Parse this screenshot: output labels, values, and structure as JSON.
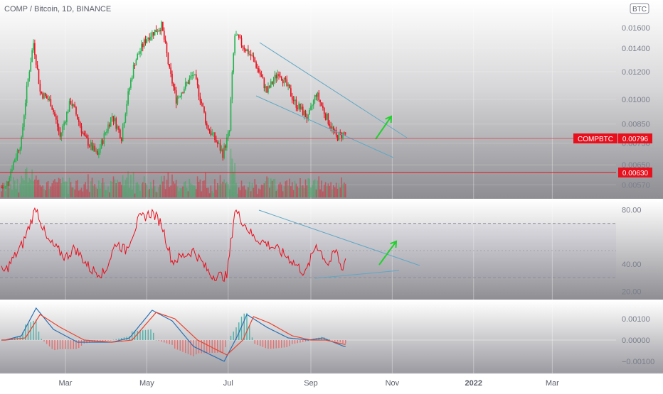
{
  "header": {
    "symbol_line": "COMP / Bitcoin, 1D, BINANCE",
    "currency_badge": "BTC"
  },
  "chart_data": [
    {
      "type": "candlestick",
      "panel": "price",
      "title": "COMP / Bitcoin, 1D, BINANCE",
      "y_scale": "log",
      "ylim": [
        0.0053,
        0.0185
      ],
      "y_ticks": [
        "0.01600",
        "0.01400",
        "0.01200",
        "0.01000",
        "0.00850",
        "0.00750",
        "0.00650",
        "0.00570"
      ],
      "x_ticks": [
        "Mar",
        "May",
        "Jul",
        "Sep",
        "Nov",
        "2022",
        "Mar"
      ],
      "price_tag": {
        "label": "COMPBTC",
        "value": "0.00796",
        "color": "#e8101d"
      },
      "level_tag": {
        "value": "0.00630",
        "color": "#e8101d"
      },
      "key_points": [
        {
          "date": "2021-01-15",
          "close": 0.0056
        },
        {
          "date": "2021-01-27",
          "close": 0.0076
        },
        {
          "date": "2021-02-05",
          "close": 0.0145
        },
        {
          "date": "2021-02-10",
          "close": 0.0105
        },
        {
          "date": "2021-02-18",
          "close": 0.0098
        },
        {
          "date": "2021-02-25",
          "close": 0.0078
        },
        {
          "date": "2021-03-05",
          "close": 0.0099
        },
        {
          "date": "2021-03-15",
          "close": 0.0078
        },
        {
          "date": "2021-03-25",
          "close": 0.0069
        },
        {
          "date": "2021-04-05",
          "close": 0.009
        },
        {
          "date": "2021-04-12",
          "close": 0.0078
        },
        {
          "date": "2021-04-22",
          "close": 0.0128
        },
        {
          "date": "2021-05-01",
          "close": 0.015
        },
        {
          "date": "2021-05-12",
          "close": 0.0162
        },
        {
          "date": "2021-05-18",
          "close": 0.012
        },
        {
          "date": "2021-05-23",
          "close": 0.01
        },
        {
          "date": "2021-06-05",
          "close": 0.0118
        },
        {
          "date": "2021-06-15",
          "close": 0.0084
        },
        {
          "date": "2021-06-27",
          "close": 0.007
        },
        {
          "date": "2021-07-02",
          "close": 0.0081
        },
        {
          "date": "2021-07-06",
          "close": 0.0152
        },
        {
          "date": "2021-07-20",
          "close": 0.013
        },
        {
          "date": "2021-07-30",
          "close": 0.0105
        },
        {
          "date": "2021-08-08",
          "close": 0.012
        },
        {
          "date": "2021-08-20",
          "close": 0.0098
        },
        {
          "date": "2021-08-30",
          "close": 0.0088
        },
        {
          "date": "2021-09-05",
          "close": 0.0104
        },
        {
          "date": "2021-09-12",
          "close": 0.009
        },
        {
          "date": "2021-09-20",
          "close": 0.0078
        },
        {
          "date": "2021-09-26",
          "close": 0.008
        }
      ],
      "annotations": [
        "descending channel",
        "horizontal support",
        "upward arrow"
      ]
    },
    {
      "type": "line",
      "panel": "rsi",
      "y_ticks": [
        "80.00",
        "40.00",
        "20.00"
      ],
      "ylim": [
        15,
        85
      ],
      "bands": [
        70,
        30
      ],
      "key_points": [
        {
          "date": "2021-01-15",
          "value": 35
        },
        {
          "date": "2021-01-28",
          "value": 55
        },
        {
          "date": "2021-02-07",
          "value": 82
        },
        {
          "date": "2021-02-15",
          "value": 58
        },
        {
          "date": "2021-03-01",
          "value": 45
        },
        {
          "date": "2021-03-08",
          "value": 52
        },
        {
          "date": "2021-03-20",
          "value": 36
        },
        {
          "date": "2021-03-30",
          "value": 33
        },
        {
          "date": "2021-04-08",
          "value": 56
        },
        {
          "date": "2021-04-15",
          "value": 50
        },
        {
          "date": "2021-04-25",
          "value": 73
        },
        {
          "date": "2021-05-05",
          "value": 78
        },
        {
          "date": "2021-05-12",
          "value": 70
        },
        {
          "date": "2021-05-20",
          "value": 42
        },
        {
          "date": "2021-06-05",
          "value": 50
        },
        {
          "date": "2021-06-18",
          "value": 32
        },
        {
          "date": "2021-06-30",
          "value": 31
        },
        {
          "date": "2021-07-06",
          "value": 80
        },
        {
          "date": "2021-07-20",
          "value": 60
        },
        {
          "date": "2021-08-05",
          "value": 52
        },
        {
          "date": "2021-08-15",
          "value": 45
        },
        {
          "date": "2021-08-28",
          "value": 33
        },
        {
          "date": "2021-09-05",
          "value": 55
        },
        {
          "date": "2021-09-14",
          "value": 40
        },
        {
          "date": "2021-09-20",
          "value": 50
        },
        {
          "date": "2021-09-24",
          "value": 36
        },
        {
          "date": "2021-09-27",
          "value": 44
        }
      ]
    },
    {
      "type": "line",
      "panel": "macd",
      "y_ticks": [
        "0.00100",
        "0.00000",
        "−0.00100"
      ],
      "ylim": [
        -0.0015,
        0.0017
      ],
      "series": [
        {
          "color": "#2b6fb2",
          "points": [
            {
              "date": "2021-01-15",
              "value": 0.0
            },
            {
              "date": "2021-01-27",
              "value": 0.0002
            },
            {
              "date": "2021-02-07",
              "value": 0.0015
            },
            {
              "date": "2021-02-20",
              "value": 0.0005
            },
            {
              "date": "2021-03-10",
              "value": -0.0001
            },
            {
              "date": "2021-04-05",
              "value": -0.0001
            },
            {
              "date": "2021-04-18",
              "value": 0.0001
            },
            {
              "date": "2021-05-05",
              "value": 0.0014
            },
            {
              "date": "2021-05-20",
              "value": 0.0009
            },
            {
              "date": "2021-06-05",
              "value": -0.0003
            },
            {
              "date": "2021-06-28",
              "value": -0.001
            },
            {
              "date": "2021-07-08",
              "value": 0.0002
            },
            {
              "date": "2021-07-15",
              "value": 0.0012
            },
            {
              "date": "2021-07-30",
              "value": 0.0006
            },
            {
              "date": "2021-08-15",
              "value": 0.0001
            },
            {
              "date": "2021-08-30",
              "value": 0.0
            },
            {
              "date": "2021-09-10",
              "value": 0.0001
            },
            {
              "date": "2021-09-26",
              "value": -0.0003
            }
          ]
        },
        {
          "color": "#e8442e",
          "points": [
            {
              "date": "2021-01-15",
              "value": 0.0
            },
            {
              "date": "2021-01-30",
              "value": 0.0001
            },
            {
              "date": "2021-02-10",
              "value": 0.0012
            },
            {
              "date": "2021-02-25",
              "value": 0.0006
            },
            {
              "date": "2021-03-15",
              "value": 0.0
            },
            {
              "date": "2021-04-05",
              "value": -0.0001
            },
            {
              "date": "2021-04-20",
              "value": 0.0
            },
            {
              "date": "2021-05-08",
              "value": 0.0013
            },
            {
              "date": "2021-05-22",
              "value": 0.001
            },
            {
              "date": "2021-06-08",
              "value": 0.0
            },
            {
              "date": "2021-06-30",
              "value": -0.0007
            },
            {
              "date": "2021-07-12",
              "value": 0.0
            },
            {
              "date": "2021-07-20",
              "value": 0.0011
            },
            {
              "date": "2021-08-01",
              "value": 0.0008
            },
            {
              "date": "2021-08-18",
              "value": 0.0002
            },
            {
              "date": "2021-09-01",
              "value": 0.0
            },
            {
              "date": "2021-09-12",
              "value": 0.0
            },
            {
              "date": "2021-09-26",
              "value": -0.0002
            }
          ]
        }
      ]
    }
  ],
  "colors": {
    "up": "#22b14c",
    "down": "#e8101d",
    "channel": "#5fa8c4",
    "arrow": "#22d02e",
    "rsi_line": "#e8101d",
    "price_tag": "#e8101d"
  }
}
